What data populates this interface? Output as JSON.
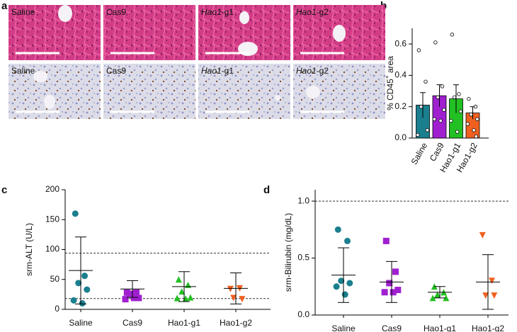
{
  "panel_labels": [
    "a",
    "b",
    "c",
    "d"
  ],
  "histology": {
    "he": [
      "Saline",
      "Cas9",
      {
        "gene": "Hao1",
        "guide": "-g1"
      },
      {
        "gene": "Hao1",
        "guide": "-g2"
      }
    ],
    "ihc": [
      "Saline",
      "Cas9",
      {
        "gene": "Hao1",
        "guide": "-g1"
      },
      {
        "gene": "Hao1",
        "guide": "-g2"
      }
    ]
  },
  "chart_data": [
    {
      "type": "bar",
      "ylabel": {
        "text": "% CD45",
        "sup": "+",
        "after": " area"
      },
      "categories": [
        "Saline",
        "Cas9",
        "Hao1-g1",
        "Hao1-g2"
      ],
      "colors": [
        "#1a7f8e",
        "#a020d0",
        "#22c022",
        "#f06020"
      ],
      "values": [
        0.21,
        0.27,
        0.25,
        0.16
      ],
      "errors": [
        0.08,
        0.07,
        0.09,
        0.04
      ],
      "points": [
        [
          0.56,
          0.36,
          0.2,
          0.05,
          0.02
        ],
        [
          0.61,
          0.33,
          0.26,
          0.18,
          0.12,
          0.11
        ],
        [
          0.66,
          0.28,
          0.26,
          0.17,
          0.11,
          0.04
        ],
        [
          0.25,
          0.2,
          0.15,
          0.12,
          0.09,
          0.05,
          0.01
        ]
      ],
      "ylim": [
        0,
        0.7
      ],
      "yticks": [
        {
          "value": 0,
          "label": "0.0"
        },
        0.2,
        0.4,
        0.6
      ]
    },
    {
      "type": "strip",
      "ylabel": "srm-ALT (U/L)",
      "categories": [
        "Saline",
        "Cas9",
        "Hao1-g1",
        "Hao1-g2"
      ],
      "colors": [
        "#1a7f8e",
        "#a020d0",
        "#22c022",
        "#f06020"
      ],
      "markers": [
        "circle",
        "square",
        "triangle-up",
        "triangle-down"
      ],
      "points": [
        [
          160,
          56,
          44,
          33,
          15,
          10
        ],
        [
          28,
          28,
          26,
          19,
          17,
          19
        ],
        [
          50,
          41,
          30,
          20,
          19,
          18
        ],
        [
          34,
          35,
          19,
          17
        ]
      ],
      "values": [
        65,
        34,
        38,
        35
      ],
      "errors": [
        56,
        14,
        25,
        26
      ],
      "ref_lines": [
        94,
        18
      ],
      "ylim": [
        0,
        200
      ],
      "yticks": [
        0,
        50,
        100,
        150,
        200
      ]
    },
    {
      "type": "strip",
      "ylabel": "srm-Bilirubin (mg/dL)",
      "categories": [
        "Saline",
        "Cas9",
        "Hao1-g1",
        "Hao1-g2"
      ],
      "colors": [
        "#1a7f8e",
        "#a020d0",
        "#22c022",
        "#f06020"
      ],
      "markers": [
        "circle",
        "square",
        "triangle-up",
        "triangle-down"
      ],
      "points": [
        [
          0.75,
          0.65,
          0.3,
          0.28,
          0.25,
          0.18
        ],
        [
          0.65,
          0.38,
          0.28,
          0.22,
          0.2,
          0.2
        ],
        [
          0.25,
          0.2,
          0.18,
          0.15,
          0.15
        ],
        [
          0.7,
          0.3,
          0.17,
          0.17
        ]
      ],
      "values": [
        0.35,
        0.29,
        0.2,
        0.29
      ],
      "errors": [
        0.24,
        0.18,
        0.05,
        0.24
      ],
      "ref_lines": [
        1.0
      ],
      "ylim": [
        0,
        1.1
      ],
      "yticks": [
        {
          "value": 0,
          "label": "0.0"
        },
        0.5,
        {
          "value": 1,
          "label": "1.0"
        }
      ]
    }
  ]
}
